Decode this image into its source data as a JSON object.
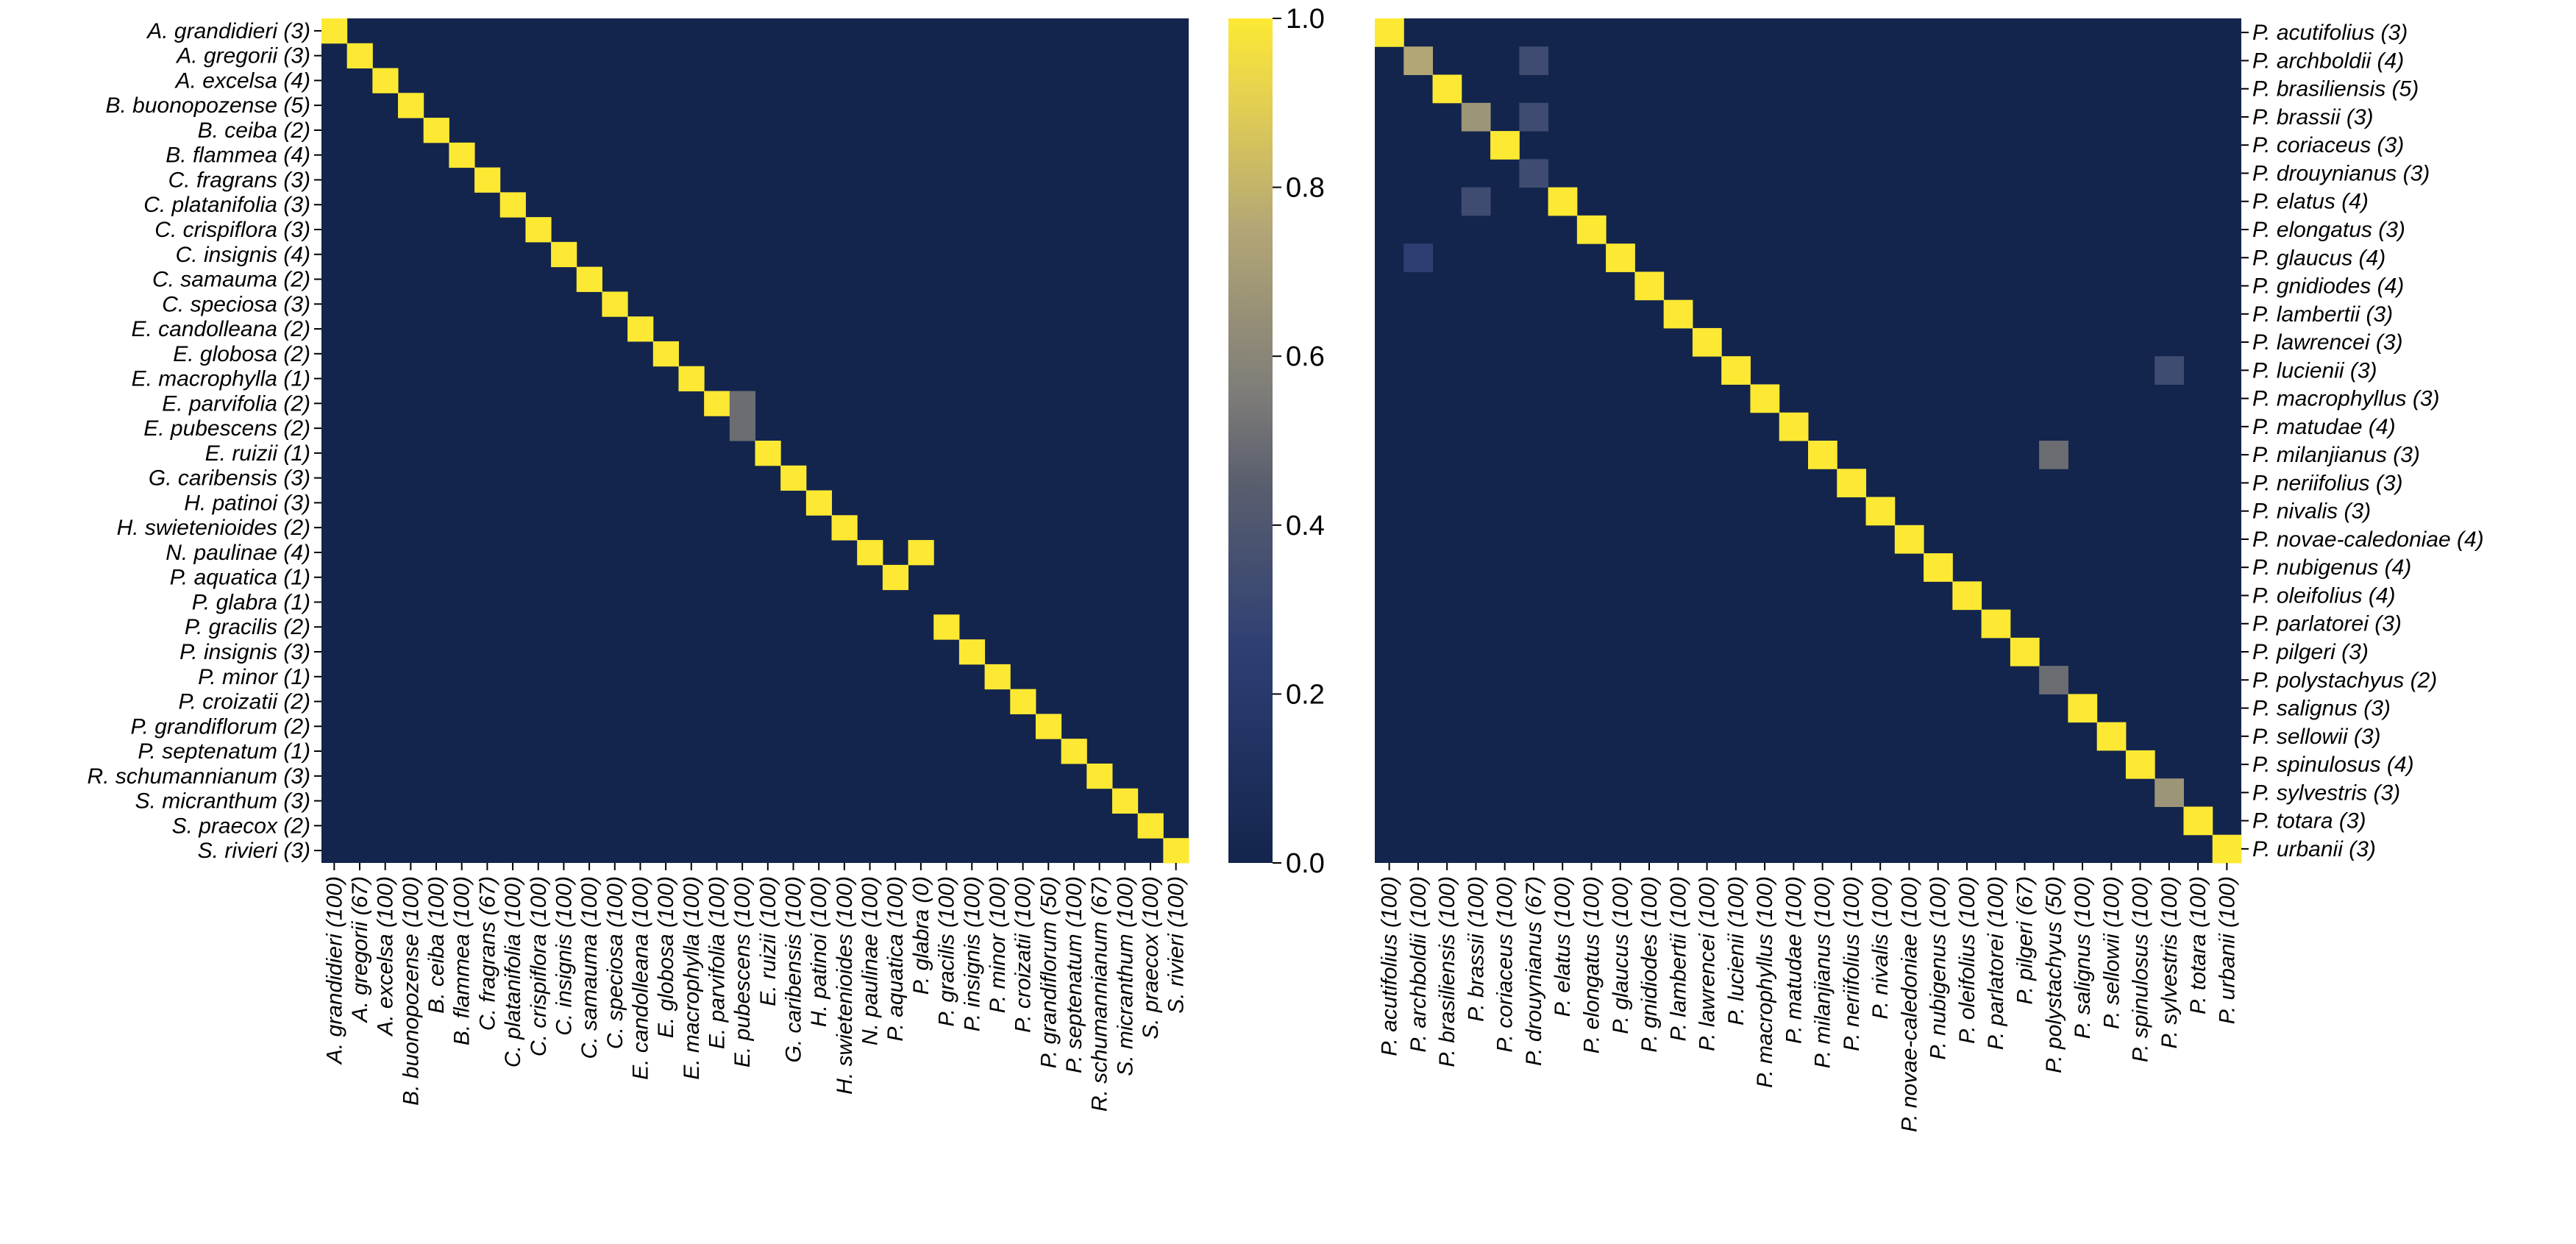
{
  "colors": {
    "zero": "#13254d",
    "mid": "#7c7b78",
    "one": "#fde933",
    "colorscale": "cividis-like (navy to yellow)"
  },
  "chart_data": [
    {
      "type": "heatmap",
      "rows": [
        "A. grandidieri (3)",
        "A. gregorii (3)",
        "A. excelsa (4)",
        "B. buonopozense (5)",
        "B. ceiba (2)",
        "B. flammea (4)",
        "C. fragrans (3)",
        "C. platanifolia (3)",
        "C. crispiflora (3)",
        "C. insignis (4)",
        "C. samauma (2)",
        "C. speciosa (3)",
        "E. candolleana (2)",
        "E. globosa (2)",
        "E. macrophylla (1)",
        "E. parvifolia (2)",
        "E. pubescens (2)",
        "E. ruizii (1)",
        "G. caribensis (3)",
        "H. patinoi (3)",
        "H. swietenioides (2)",
        "N. paulinae (4)",
        "P. aquatica (1)",
        "P. glabra (1)",
        "P. gracilis (2)",
        "P. insignis (3)",
        "P. minor (1)",
        "P. croizatii (2)",
        "P. grandiflorum (2)",
        "P. septenatum (1)",
        "R. schumannianum (3)",
        "S. micranthum (3)",
        "S. praecox (2)",
        "S. rivieri (3)"
      ],
      "columns": [
        "A. grandidieri (100)",
        "A. gregorii (67)",
        "A. excelsa (100)",
        "B. buonopozense (100)",
        "B. ceiba (100)",
        "B. flammea (100)",
        "C. fragrans (67)",
        "C. platanifolia (100)",
        "C. crispiflora (100)",
        "C. insignis (100)",
        "C. samauma (100)",
        "C. speciosa (100)",
        "E. candolleana (100)",
        "E. globosa (100)",
        "E. macrophylla (100)",
        "E. parvifolia (100)",
        "E. pubescens (100)",
        "E. ruizii (100)",
        "G. caribensis (100)",
        "H. patinoi (100)",
        "H. swietenioides (100)",
        "N. paulinae (100)",
        "P. aquatica (100)",
        "P. glabra (0)",
        "P. gracilis (100)",
        "P. insignis (100)",
        "P. minor (100)",
        "P. croizatii (100)",
        "P. grandiflorum (50)",
        "P. septenatum (100)",
        "R. schumannianum (67)",
        "S. micranthum (100)",
        "S. praecox (100)",
        "S. rivieri (100)"
      ],
      "diagonal_value": 1.0,
      "background_value": 0.0,
      "cells": [
        {
          "row": 15,
          "col": 16,
          "value": 0.5
        },
        {
          "row": 16,
          "col": 16,
          "value": 0.5
        },
        {
          "row": 16,
          "col": 15,
          "value": 0
        },
        {
          "row": 22,
          "col": 21,
          "value": 0
        },
        {
          "row": 21,
          "col": 23,
          "value": 1.0
        },
        {
          "row": 22,
          "col": 22,
          "value": 1.0
        },
        {
          "row": 23,
          "col": 23,
          "value": 0
        }
      ]
    },
    {
      "type": "heatmap",
      "rows": [
        "P. acutifolius (3)",
        "P. archboldii (4)",
        "P. brasiliensis (5)",
        "P. brassii (3)",
        "P. coriaceus (3)",
        "P. drouynianus (3)",
        "P. elatus (4)",
        "P. elongatus (3)",
        "P. glaucus (4)",
        "P. gnidiodes (4)",
        "P. lambertii (3)",
        "P. lawrencei (3)",
        "P. lucienii (3)",
        "P. macrophyllus (3)",
        "P. matudae (4)",
        "P. milanjianus (3)",
        "P. neriifolius (3)",
        "P. nivalis (3)",
        "P. novae-caledoniae (4)",
        "P. nubigenus (4)",
        "P. oleifolius (4)",
        "P. parlatorei (3)",
        "P. pilgeri (3)",
        "P. polystachyus (2)",
        "P. salignus (3)",
        "P. sellowii (3)",
        "P. spinulosus (4)",
        "P. sylvestris (3)",
        "P. totara (3)",
        "P. urbanii (3)"
      ],
      "columns": [
        "P. acutifolius (100)",
        "P. archboldii (100)",
        "P. brasiliensis (100)",
        "P. brassii (100)",
        "P. coriaceus (100)",
        "P. drouynianus (67)",
        "P. elatus (100)",
        "P. elongatus (100)",
        "P. glaucus (100)",
        "P. gnidiodes (100)",
        "P. lambertii (100)",
        "P. lawrencei (100)",
        "P. lucienii (100)",
        "P. macrophyllus (100)",
        "P. matudae (100)",
        "P. milanjianus (100)",
        "P. neriifolius (100)",
        "P. nivalis (100)",
        "P. novae-caledoniae (100)",
        "P. nubigenus (100)",
        "P. oleifolius (100)",
        "P. parlatorei (100)",
        "P. pilgeri (67)",
        "P. polystachyus (50)",
        "P. salignus (100)",
        "P. sellowii (100)",
        "P. spinulosus (100)",
        "P. sylvestris (100)",
        "P. totara (100)",
        "P. urbanii (100)"
      ],
      "diagonal_value": 1.0,
      "background_value": 0.0,
      "cells": [
        {
          "row": 1,
          "col": 1,
          "value": 0.75
        },
        {
          "row": 1,
          "col": 5,
          "value": 0.33
        },
        {
          "row": 3,
          "col": 3,
          "value": 0.67
        },
        {
          "row": 3,
          "col": 5,
          "value": 0.33
        },
        {
          "row": 5,
          "col": 5,
          "value": 0.33
        },
        {
          "row": 6,
          "col": 3,
          "value": 0.33
        },
        {
          "row": 8,
          "col": 1,
          "value": 0.25
        },
        {
          "row": 12,
          "col": 27,
          "value": 0.33
        },
        {
          "row": 15,
          "col": 23,
          "value": 0.5
        },
        {
          "row": 23,
          "col": 23,
          "value": 0.5
        },
        {
          "row": 27,
          "col": 27,
          "value": 0.67
        }
      ]
    }
  ],
  "colorbar": {
    "min": 0.0,
    "max": 1.0,
    "ticks": [
      "0.0",
      "0.2",
      "0.4",
      "0.6",
      "0.8",
      "1.0"
    ]
  }
}
